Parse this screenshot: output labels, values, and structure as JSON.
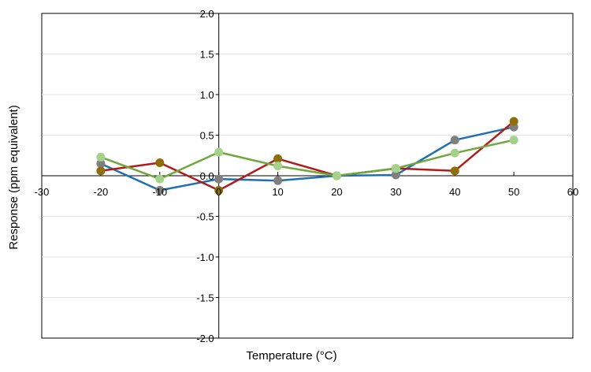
{
  "chart_data": {
    "type": "line",
    "title": "",
    "xlabel": "Temperature (°C)",
    "ylabel": "Response (ppm equivalent)",
    "xlim": [
      -30,
      60
    ],
    "ylim": [
      -2.0,
      2.0
    ],
    "x_ticks": [
      -30,
      -20,
      -10,
      0,
      10,
      20,
      30,
      40,
      50,
      60
    ],
    "x_tick_labels": [
      "-30",
      "-20",
      "-10",
      "0",
      "10",
      "20",
      "30",
      "40",
      "50",
      "60"
    ],
    "y_ticks": [
      -2.0,
      -1.5,
      -1.0,
      -0.5,
      0.0,
      0.5,
      1.0,
      1.5,
      2.0
    ],
    "y_tick_labels": [
      "-2.0",
      "-1.5",
      "-1.0",
      "-0.5",
      "0.0",
      "0.5",
      "1.0",
      "1.5",
      "2.0"
    ],
    "grid": "horizontal",
    "legend": "none",
    "series": [
      {
        "line_color": "#1f6fb4",
        "marker_color": "#7f7f7f",
        "x": [
          -20,
          -10,
          0,
          10,
          20,
          30,
          40,
          50
        ],
        "y": [
          0.15,
          -0.18,
          -0.04,
          -0.06,
          0.0,
          0.01,
          0.44,
          0.6
        ]
      },
      {
        "line_color": "#b01c1c",
        "marker_color": "#8e6e0a",
        "x": [
          -20,
          -10,
          0,
          10,
          20,
          30,
          40,
          50
        ],
        "y": [
          0.06,
          0.16,
          -0.18,
          0.21,
          0.0,
          0.09,
          0.06,
          0.67
        ]
      },
      {
        "line_color": "#6fa83c",
        "marker_color": "#a6d18a",
        "x": [
          -20,
          -10,
          0,
          10,
          20,
          30,
          40,
          50
        ],
        "y": [
          0.23,
          -0.04,
          0.29,
          0.12,
          0.0,
          0.09,
          0.28,
          0.44
        ]
      }
    ]
  }
}
